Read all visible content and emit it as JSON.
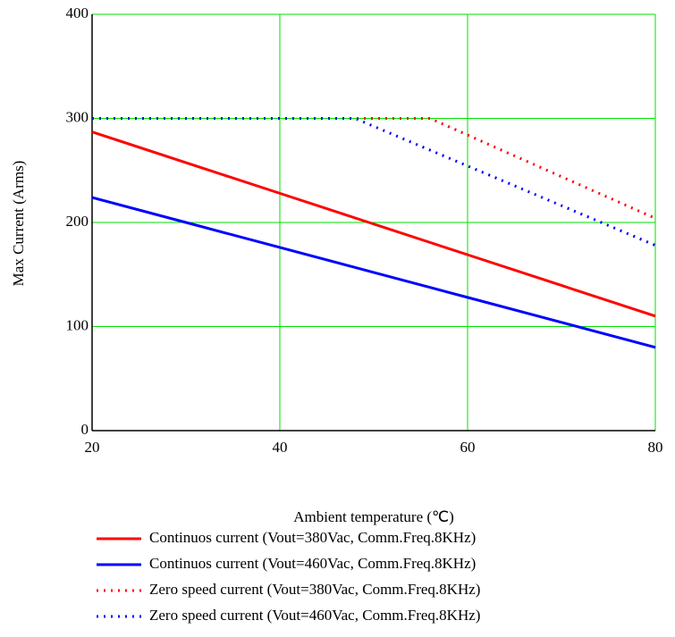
{
  "chart_data": {
    "type": "line",
    "x_label": "Ambient temperature (℃)",
    "y_label": "Max Current (Arms)",
    "x": [
      20,
      30,
      40,
      48,
      50,
      56,
      60,
      70,
      80
    ],
    "xlim": [
      20,
      80
    ],
    "ylim": [
      0,
      400
    ],
    "xticks": [
      20,
      40,
      60,
      80
    ],
    "yticks": [
      0,
      100,
      200,
      300,
      400
    ],
    "grid": true,
    "grid_color": "#00e000",
    "legend_position": "bottom",
    "series": [
      {
        "name": "Continuos current (Vout=380Vac, Comm.Freq.8KHz)",
        "color": "#ff0000",
        "line_style": "solid",
        "values": [
          287,
          257.5,
          228,
          204.4,
          198.5,
          180.8,
          169,
          139.5,
          110
        ]
      },
      {
        "name": "Continuos current (Vout=460Vac, Comm.Freq.8KHz)",
        "color": "#0000ff",
        "line_style": "solid",
        "values": [
          224,
          200,
          176,
          156.8,
          152,
          137.6,
          128,
          104,
          80
        ]
      },
      {
        "name": "Zero speed current (Vout=380Vac, Comm.Freq.8KHz)",
        "color": "#ff0000",
        "line_style": "dotted",
        "values": [
          300,
          300,
          300,
          300,
          300,
          300,
          284,
          244,
          204
        ]
      },
      {
        "name": "Zero speed current (Vout=460Vac, Comm.Freq.8KHz)",
        "color": "#0000ff",
        "line_style": "dotted",
        "values": [
          300,
          300,
          300,
          300,
          292.4,
          269.5,
          254.3,
          216.2,
          178
        ]
      }
    ]
  }
}
